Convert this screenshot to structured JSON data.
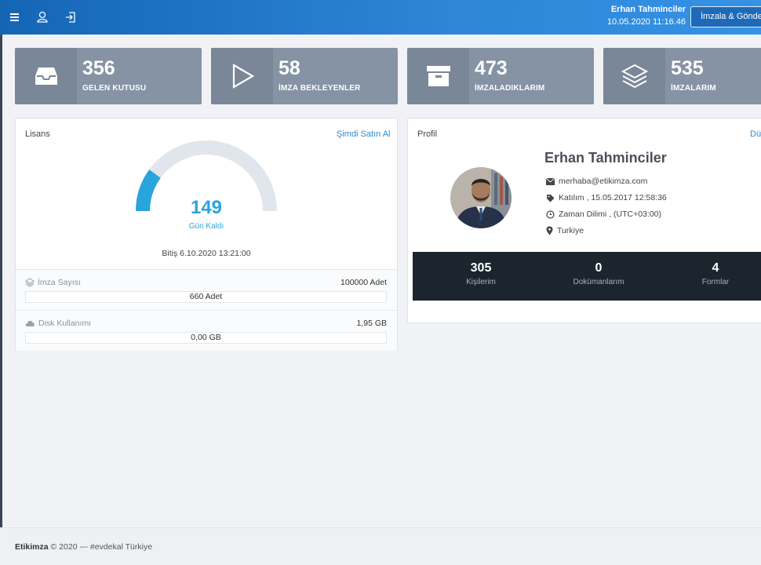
{
  "topbar": {
    "user_name": "Erhan Tahminciler",
    "datetime": "10.05.2020 11:16.46",
    "sign_send_label": "İmzala & Gönder",
    "icons": [
      "menu-icon",
      "user-icon",
      "logout-icon"
    ]
  },
  "tiles": [
    {
      "value": "356",
      "label": "GELEN KUTUSU",
      "icon": "inbox-icon"
    },
    {
      "value": "58",
      "label": "İMZA BEKLEYENLER",
      "icon": "play-icon"
    },
    {
      "value": "473",
      "label": "İMZALADIKLARIM",
      "icon": "archive-icon"
    },
    {
      "value": "535",
      "label": "İMZALARIM",
      "icon": "layers-icon"
    }
  ],
  "license": {
    "title": "Lisans",
    "buy_link": "Şimdi Satın Al",
    "days_left": "149",
    "days_left_label": "Gün Kaldı",
    "gauge_fraction": 0.2,
    "expiry": "Bitiş  6.10.2020 13:21:00",
    "signature_count_label": "İmza Sayısı",
    "signature_count_total": "100000 Adet",
    "signature_count_used": "660 Adet",
    "disk_label": "Disk Kullanımı",
    "disk_total": "1,95 GB",
    "disk_used": "0,00 GB"
  },
  "profile": {
    "title": "Profil",
    "edit_link": "Düzenle",
    "name": "Erhan Tahminciler",
    "email": "merhaba@etikimza.com",
    "joined": "Katılım , 15.05.2017 12:58:36",
    "timezone": "Zaman Dilimi , (UTC+03:00)",
    "country": "Turkiye",
    "stats": [
      {
        "value": "305",
        "label": "Kişilerim"
      },
      {
        "value": "0",
        "label": "Dokümanlarım"
      },
      {
        "value": "4",
        "label": "Formlar"
      }
    ]
  },
  "footer": {
    "brand": "Etikimza",
    "text": "© 2020 --- #evdekal Türkiye"
  },
  "colors": {
    "accent": "#2aa4dc",
    "topbar": "#1e6ab8",
    "tile": "#8593a4",
    "stats_bg": "#1c252e"
  }
}
